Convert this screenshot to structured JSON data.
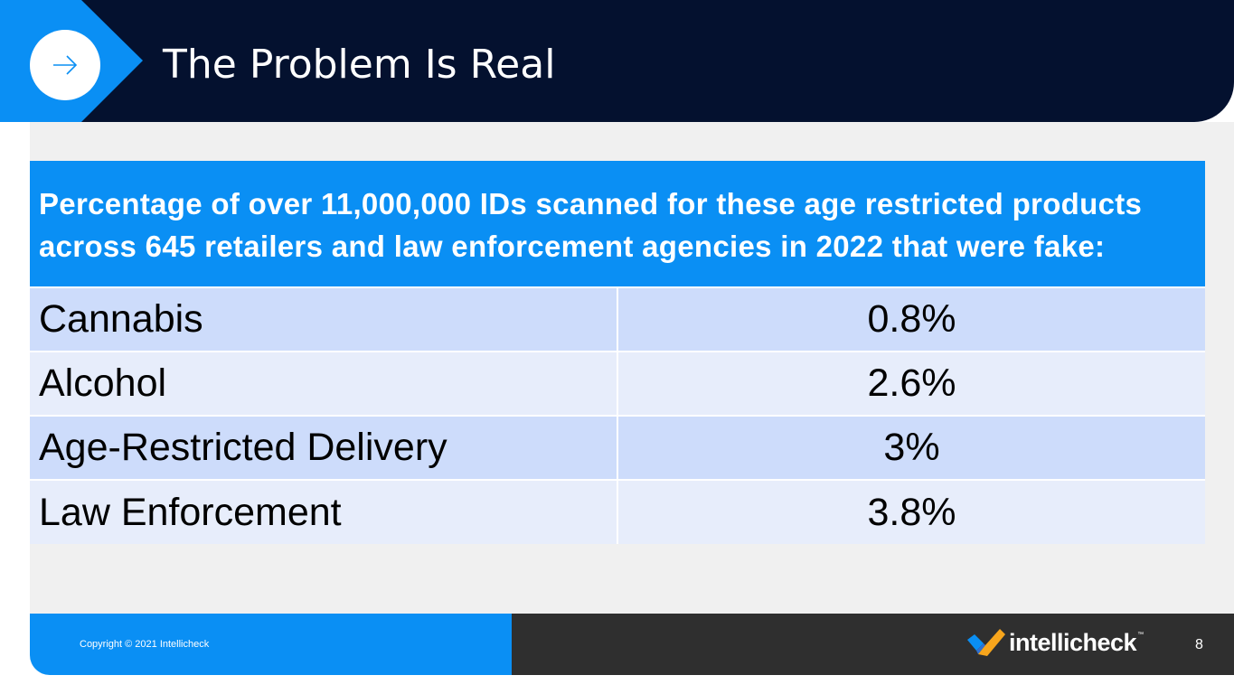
{
  "header": {
    "title": "The Problem Is Real",
    "badge_icon": "right-arrow-icon"
  },
  "table": {
    "heading": "Percentage of over 11,000,000 IDs scanned for these age restricted products across 645 retailers and law enforcement agencies in 2022 that were fake:",
    "rows": [
      {
        "label": "Cannabis",
        "value": "0.8%"
      },
      {
        "label": "Alcohol",
        "value": "2.6%"
      },
      {
        "label": "Age-Restricted Delivery",
        "value": "3%"
      },
      {
        "label": "Law Enforcement",
        "value": "3.8%"
      }
    ]
  },
  "footer": {
    "copyright": "Copyright © 2021 Intellicheck",
    "logo_text": "intellicheck",
    "logo_tm": "™",
    "page_number": "8"
  },
  "colors": {
    "navy": "#04112f",
    "brand_blue": "#0a8ff4",
    "row_dark": "#cddcfb",
    "row_light": "#e7edfb",
    "footer_dark": "#2f2f2f",
    "logo_orange": "#f7a51c"
  }
}
